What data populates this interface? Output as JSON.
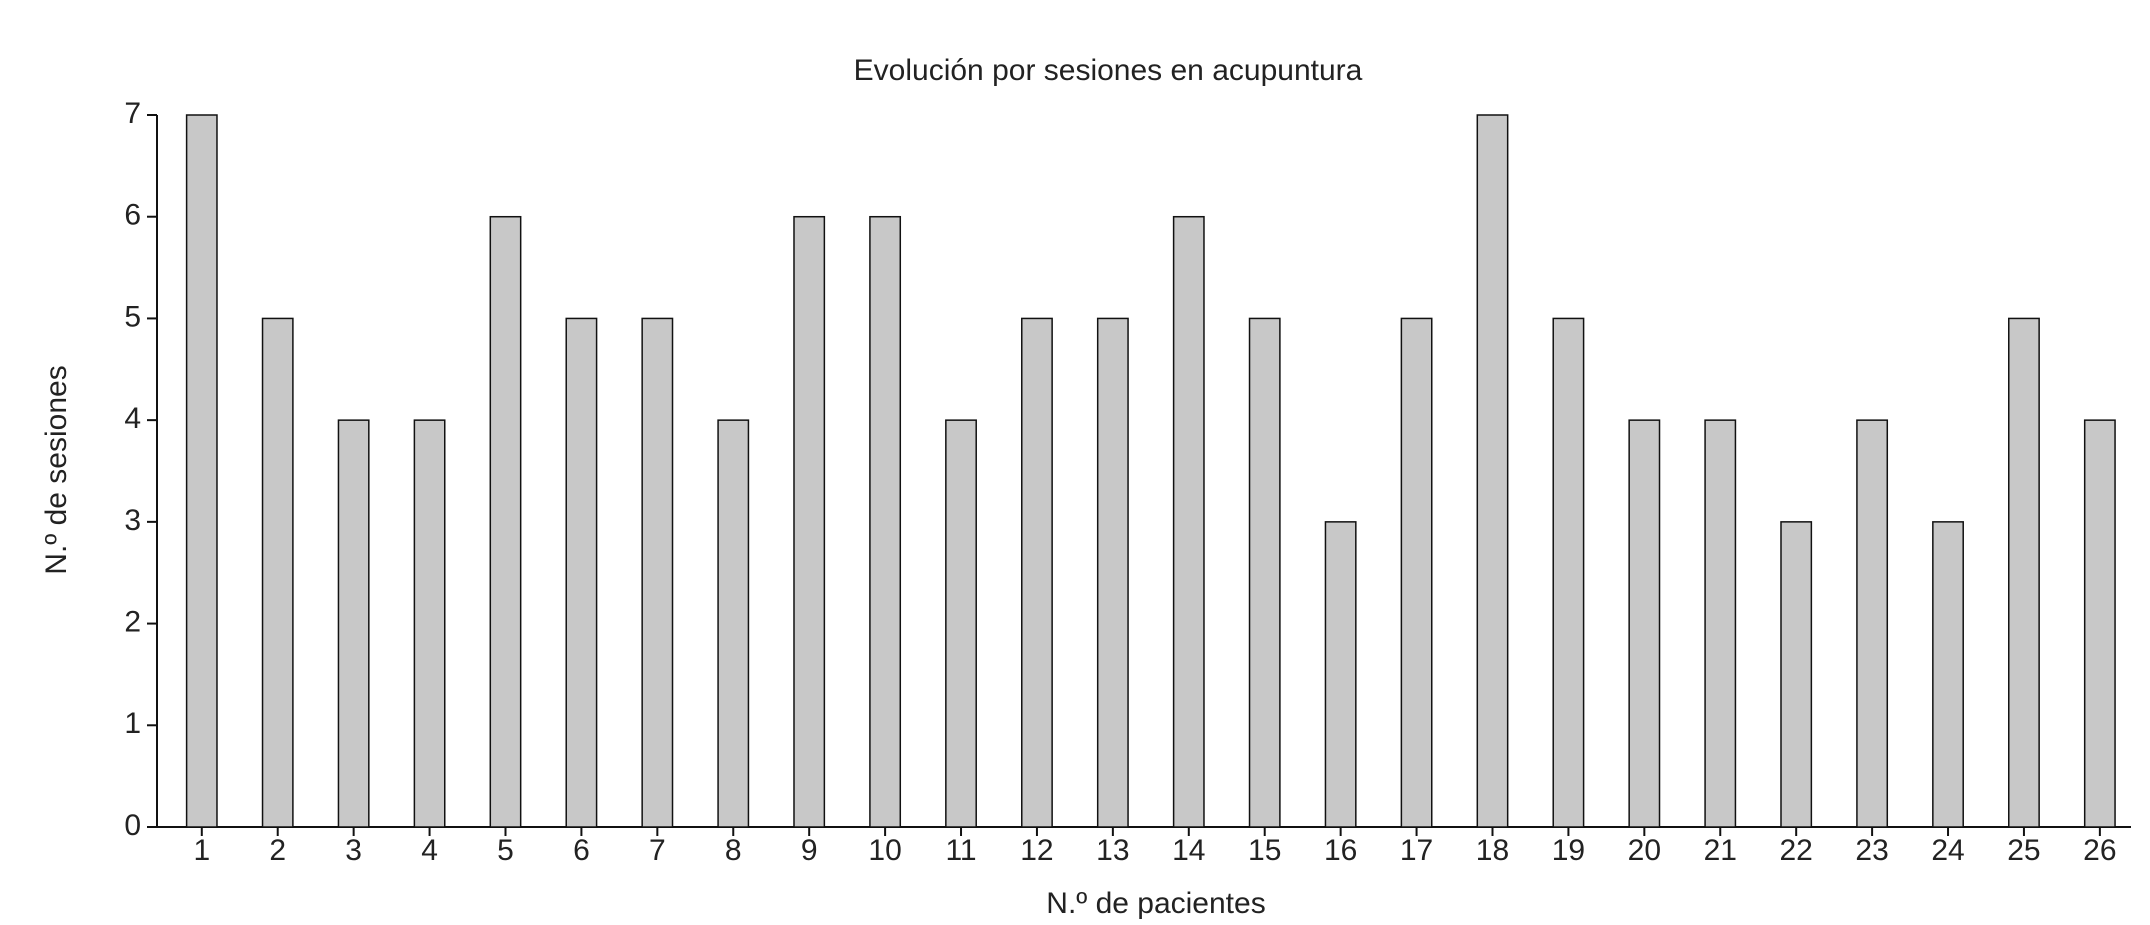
{
  "chart_data": {
    "type": "bar",
    "title": "Evolución por sesiones en acupuntura",
    "x_label": "N.º de pacientes",
    "y_label": "N.º de sesiones",
    "categories": [
      "1",
      "2",
      "3",
      "4",
      "5",
      "6",
      "7",
      "8",
      "9",
      "10",
      "11",
      "12",
      "13",
      "14",
      "15",
      "16",
      "17",
      "18",
      "19",
      "20",
      "21",
      "22",
      "23",
      "24",
      "25",
      "26"
    ],
    "values": [
      7,
      5,
      4,
      4,
      6,
      5,
      5,
      4,
      6,
      6,
      4,
      5,
      5,
      6,
      5,
      3,
      5,
      7,
      5,
      4,
      4,
      3,
      4,
      3,
      5,
      4
    ],
    "color": "#c8c8c8",
    "ylim": [
      0,
      7
    ],
    "yticks": [
      0,
      1,
      2,
      3,
      4,
      5,
      6,
      7
    ],
    "grid": false
  }
}
